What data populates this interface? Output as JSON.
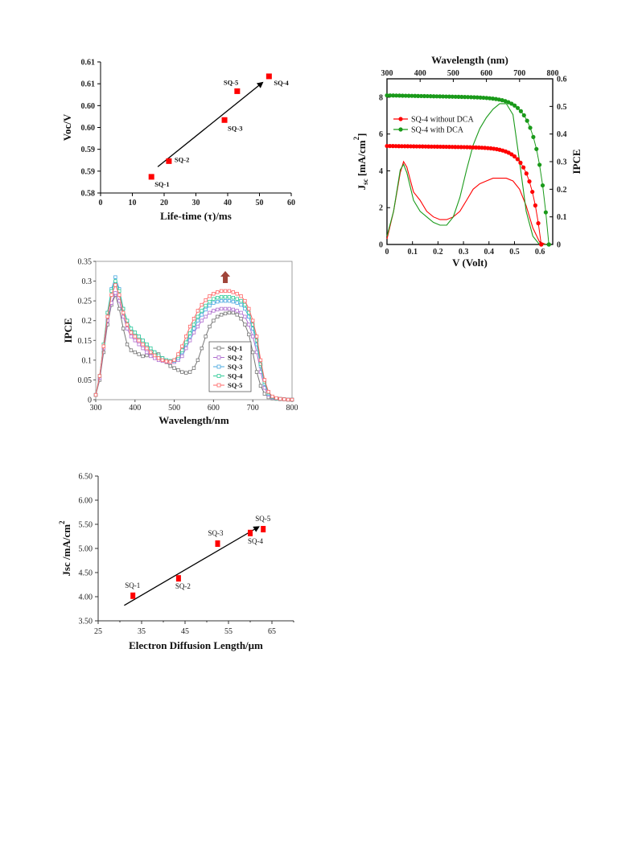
{
  "chart_data": [
    {
      "id": "c1",
      "type": "scatter",
      "xlabel": "Life-time (τ)/ms",
      "ylabel": "Voc/V",
      "xlim": [
        0,
        60
      ],
      "ylim": [
        0.58,
        0.61
      ],
      "xticks": [
        "0",
        "10",
        "20",
        "30",
        "40",
        "50",
        "60"
      ],
      "yticks": [
        "0.58",
        "0.59",
        "0.59",
        "0.60",
        "0.60",
        "0.61",
        "0.61"
      ],
      "points": [
        {
          "label": "SQ-1",
          "x": 16,
          "y": 0.5837
        },
        {
          "label": "SQ-2",
          "x": 21.5,
          "y": 0.5873
        },
        {
          "label": "SQ-3",
          "x": 39,
          "y": 0.5967
        },
        {
          "label": "SQ-5",
          "x": 43,
          "y": 0.6033
        },
        {
          "label": "SQ-4",
          "x": 53,
          "y": 0.6067
        }
      ],
      "trend": [
        [
          18,
          0.586
        ],
        [
          51,
          0.6053
        ]
      ],
      "color": "#ff0000"
    },
    {
      "id": "c2",
      "type": "line",
      "xlabel": "V (Volt)",
      "ylabel": "Jsc [mA/cm²]",
      "ylabel_main": "J",
      "ylabel_sub": "sc",
      "ylabel_rest": " [mA/cm",
      "ylabel_sup": "2",
      "ylabel_end": "]",
      "top_xlabel": "Wavelength (nm)",
      "right_ylabel": "IPCE",
      "xlim": [
        0,
        0.65
      ],
      "ylim": [
        0,
        9
      ],
      "top_xlim": [
        300,
        800
      ],
      "right_ylim": [
        0,
        0.6
      ],
      "xticks": [
        "0",
        "0.1",
        "0.2",
        "0.3",
        "0.4",
        "0.5",
        "0.6"
      ],
      "yticks": [
        "0",
        "2",
        "4",
        "6",
        "8"
      ],
      "top_xticks": [
        "300",
        "400",
        "500",
        "600",
        "700",
        "800"
      ],
      "right_yticks": [
        "0",
        "0.1",
        "0.2",
        "0.3",
        "0.4",
        "0.5",
        "0.6"
      ],
      "legend": [
        {
          "name": "SQ-4 without DCA",
          "color": "#ff0000"
        },
        {
          "name": "SQ-4 with DCA",
          "color": "#1a9a1a"
        }
      ],
      "series_jv": [
        {
          "name": "SQ-4 without DCA",
          "color": "#ff0000",
          "jsc": 5.35,
          "voc": 0.605
        },
        {
          "name": "SQ-4 with DCA",
          "color": "#1a9a1a",
          "jsc": 8.1,
          "voc": 0.635
        }
      ],
      "series_ipce": [
        {
          "name": "SQ-4 without DCA",
          "color": "#ff0000",
          "points": [
            [
              300,
              0.02
            ],
            [
              320,
              0.12
            ],
            [
              340,
              0.26
            ],
            [
              350,
              0.3
            ],
            [
              360,
              0.28
            ],
            [
              380,
              0.19
            ],
            [
              400,
              0.16
            ],
            [
              420,
              0.12
            ],
            [
              440,
              0.1
            ],
            [
              460,
              0.09
            ],
            [
              480,
              0.09
            ],
            [
              500,
              0.1
            ],
            [
              520,
              0.12
            ],
            [
              540,
              0.16
            ],
            [
              560,
              0.2
            ],
            [
              580,
              0.22
            ],
            [
              600,
              0.23
            ],
            [
              620,
              0.24
            ],
            [
              640,
              0.24
            ],
            [
              660,
              0.24
            ],
            [
              680,
              0.23
            ],
            [
              700,
              0.2
            ],
            [
              720,
              0.14
            ],
            [
              740,
              0.06
            ],
            [
              760,
              0.01
            ],
            [
              780,
              0.0
            ]
          ]
        },
        {
          "name": "SQ-4 with DCA",
          "color": "#1a9a1a",
          "points": [
            [
              300,
              0.03
            ],
            [
              320,
              0.12
            ],
            [
              340,
              0.27
            ],
            [
              350,
              0.29
            ],
            [
              360,
              0.26
            ],
            [
              380,
              0.16
            ],
            [
              400,
              0.12
            ],
            [
              420,
              0.1
            ],
            [
              440,
              0.08
            ],
            [
              460,
              0.07
            ],
            [
              480,
              0.07
            ],
            [
              500,
              0.1
            ],
            [
              520,
              0.17
            ],
            [
              540,
              0.27
            ],
            [
              560,
              0.36
            ],
            [
              580,
              0.42
            ],
            [
              600,
              0.46
            ],
            [
              620,
              0.49
            ],
            [
              640,
              0.51
            ],
            [
              660,
              0.51
            ],
            [
              680,
              0.47
            ],
            [
              700,
              0.3
            ],
            [
              720,
              0.12
            ],
            [
              740,
              0.03
            ],
            [
              760,
              0.0
            ],
            [
              780,
              0.0
            ]
          ]
        }
      ]
    },
    {
      "id": "c3",
      "type": "line",
      "xlabel": "Wavelength/nm",
      "ylabel": "IPCE",
      "xlim": [
        300,
        800
      ],
      "ylim": [
        0,
        0.35
      ],
      "xticks": [
        "300",
        "400",
        "500",
        "600",
        "700",
        "800"
      ],
      "yticks": [
        "0",
        "0.05",
        "0.1",
        "0.15",
        "0.2",
        "0.25",
        "0.3",
        "0.35"
      ],
      "x": [
        300,
        310,
        320,
        330,
        340,
        350,
        360,
        370,
        380,
        390,
        400,
        410,
        420,
        430,
        440,
        450,
        460,
        470,
        480,
        490,
        500,
        510,
        520,
        530,
        540,
        550,
        560,
        570,
        580,
        590,
        600,
        610,
        620,
        630,
        640,
        650,
        660,
        670,
        680,
        690,
        700,
        710,
        720,
        730,
        740,
        750,
        760,
        770,
        780,
        790,
        800
      ],
      "series": [
        {
          "name": "SQ-1",
          "color": "#777777",
          "values": [
            0.012,
            0.05,
            0.12,
            0.19,
            0.24,
            0.265,
            0.23,
            0.18,
            0.14,
            0.125,
            0.12,
            0.115,
            0.11,
            0.112,
            0.118,
            0.12,
            0.115,
            0.105,
            0.095,
            0.085,
            0.08,
            0.075,
            0.07,
            0.068,
            0.07,
            0.08,
            0.1,
            0.13,
            0.16,
            0.185,
            0.2,
            0.21,
            0.215,
            0.218,
            0.22,
            0.22,
            0.215,
            0.205,
            0.19,
            0.165,
            0.12,
            0.07,
            0.035,
            0.015,
            0.006,
            0.003,
            0.002,
            0.001,
            0.001,
            0.0,
            0.0
          ]
        },
        {
          "name": "SQ-2",
          "color": "#b06fd0",
          "values": [
            0.012,
            0.055,
            0.13,
            0.2,
            0.245,
            0.27,
            0.25,
            0.21,
            0.18,
            0.16,
            0.15,
            0.14,
            0.13,
            0.12,
            0.11,
            0.105,
            0.1,
            0.098,
            0.096,
            0.095,
            0.095,
            0.1,
            0.11,
            0.13,
            0.15,
            0.17,
            0.185,
            0.2,
            0.21,
            0.22,
            0.225,
            0.228,
            0.23,
            0.23,
            0.23,
            0.228,
            0.225,
            0.22,
            0.21,
            0.19,
            0.16,
            0.12,
            0.07,
            0.03,
            0.012,
            0.005,
            0.003,
            0.002,
            0.001,
            0.0,
            0.0
          ]
        },
        {
          "name": "SQ-3",
          "color": "#4aa8e0",
          "values": [
            0.012,
            0.06,
            0.14,
            0.22,
            0.28,
            0.31,
            0.28,
            0.23,
            0.2,
            0.18,
            0.17,
            0.16,
            0.15,
            0.14,
            0.13,
            0.12,
            0.11,
            0.105,
            0.1,
            0.098,
            0.098,
            0.105,
            0.12,
            0.14,
            0.16,
            0.18,
            0.2,
            0.215,
            0.228,
            0.238,
            0.245,
            0.248,
            0.25,
            0.25,
            0.25,
            0.248,
            0.245,
            0.24,
            0.23,
            0.21,
            0.18,
            0.14,
            0.085,
            0.04,
            0.015,
            0.006,
            0.003,
            0.002,
            0.001,
            0.0,
            0.0
          ]
        },
        {
          "name": "SQ-4",
          "color": "#33cc99",
          "values": [
            0.012,
            0.06,
            0.14,
            0.22,
            0.275,
            0.3,
            0.275,
            0.23,
            0.2,
            0.18,
            0.17,
            0.16,
            0.15,
            0.14,
            0.13,
            0.12,
            0.112,
            0.105,
            0.1,
            0.098,
            0.1,
            0.11,
            0.125,
            0.145,
            0.168,
            0.19,
            0.21,
            0.225,
            0.238,
            0.248,
            0.255,
            0.258,
            0.26,
            0.26,
            0.26,
            0.258,
            0.255,
            0.25,
            0.24,
            0.22,
            0.19,
            0.15,
            0.09,
            0.045,
            0.018,
            0.007,
            0.003,
            0.002,
            0.001,
            0.0,
            0.0
          ]
        },
        {
          "name": "SQ-5",
          "color": "#ff6666",
          "values": [
            0.012,
            0.06,
            0.135,
            0.21,
            0.265,
            0.29,
            0.265,
            0.22,
            0.19,
            0.17,
            0.16,
            0.15,
            0.14,
            0.13,
            0.12,
            0.112,
            0.105,
            0.1,
            0.097,
            0.096,
            0.1,
            0.115,
            0.135,
            0.16,
            0.185,
            0.205,
            0.225,
            0.24,
            0.252,
            0.262,
            0.268,
            0.272,
            0.275,
            0.275,
            0.275,
            0.272,
            0.268,
            0.262,
            0.25,
            0.23,
            0.2,
            0.16,
            0.1,
            0.05,
            0.02,
            0.008,
            0.004,
            0.002,
            0.001,
            0.0,
            0.0
          ]
        }
      ],
      "arrow_color": "#a0453a"
    },
    {
      "id": "c4",
      "type": "scatter",
      "xlabel": "Electron Diffusion  Length/μm",
      "ylabel": "Jsc /mA/cm²",
      "ylabel_main": "Jsc /mA/cm",
      "ylabel_sup": "2",
      "xlim": [
        25,
        70
      ],
      "ylim": [
        3.5,
        6.5
      ],
      "xticks": [
        "25",
        "35",
        "45",
        "55",
        "65"
      ],
      "yticks": [
        "3.50",
        "4.00",
        "4.50",
        "5.00",
        "5.50",
        "6.00",
        "6.50"
      ],
      "points": [
        {
          "label": "SQ-1",
          "x": 33,
          "y": 4.02
        },
        {
          "label": "SQ-2",
          "x": 43.5,
          "y": 4.38
        },
        {
          "label": "SQ-3",
          "x": 52.5,
          "y": 5.1
        },
        {
          "label": "SQ-4",
          "x": 60,
          "y": 5.32
        },
        {
          "label": "SQ-5",
          "x": 63,
          "y": 5.4
        }
      ],
      "trend": [
        [
          31,
          3.82
        ],
        [
          62,
          5.45
        ]
      ],
      "color": "#ff0000"
    }
  ]
}
